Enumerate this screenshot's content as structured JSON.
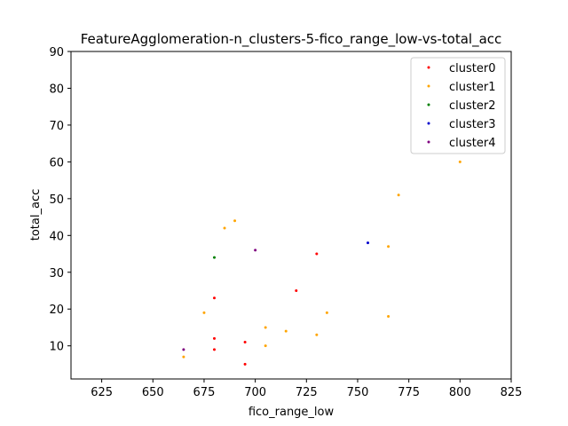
{
  "chart_data": {
    "type": "scatter",
    "title": "FeatureAgglomeration-n_clusters-5-fico_range_low-vs-total_acc",
    "xlabel": "fico_range_low",
    "ylabel": "total_acc",
    "xlim": [
      610,
      825
    ],
    "ylim": [
      1,
      90
    ],
    "xticks": [
      625,
      650,
      675,
      700,
      725,
      750,
      775,
      800,
      825
    ],
    "yticks": [
      10,
      20,
      30,
      40,
      50,
      60,
      70,
      80,
      90
    ],
    "grid": false,
    "legend_position": "top-right",
    "series": [
      {
        "name": "cluster0",
        "color": "#ff0000",
        "points": [
          [
            680,
            23
          ],
          [
            680,
            12
          ],
          [
            680,
            9
          ],
          [
            695,
            11
          ],
          [
            695,
            5
          ],
          [
            720,
            25
          ],
          [
            730,
            35
          ]
        ]
      },
      {
        "name": "cluster1",
        "color": "#ffa500",
        "points": [
          [
            665,
            7
          ],
          [
            675,
            19
          ],
          [
            685,
            42
          ],
          [
            690,
            44
          ],
          [
            705,
            15
          ],
          [
            705,
            10
          ],
          [
            715,
            14
          ],
          [
            730,
            13
          ],
          [
            735,
            19
          ],
          [
            765,
            37
          ],
          [
            765,
            18
          ],
          [
            770,
            51
          ],
          [
            800,
            60
          ]
        ]
      },
      {
        "name": "cluster2",
        "color": "#008000",
        "points": [
          [
            680,
            34
          ]
        ]
      },
      {
        "name": "cluster3",
        "color": "#0000cd",
        "points": [
          [
            755,
            38
          ]
        ]
      },
      {
        "name": "cluster4",
        "color": "#800080",
        "points": [
          [
            665,
            9
          ],
          [
            700,
            36
          ]
        ]
      }
    ]
  }
}
